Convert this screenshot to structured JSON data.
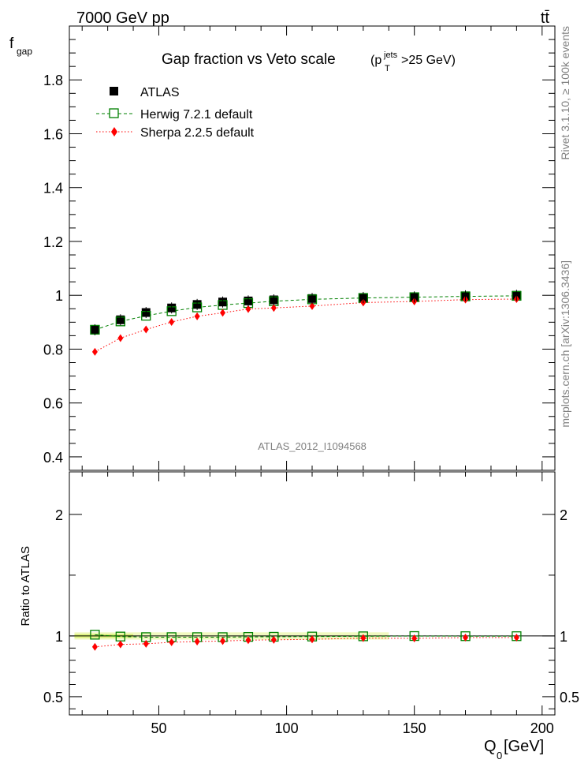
{
  "header": {
    "energy_label": "7000 GeV pp",
    "process_label": "tt̄"
  },
  "side_labels": {
    "rivet": "Rivet 3.1.10, ≥ 100k events",
    "mcplots": "mcplots.cern.ch [arXiv:1306.3436]"
  },
  "chart_data": {
    "type": "scatter",
    "title": "Gap fraction vs Veto scale",
    "title_cut": {
      "prefix": "(p",
      "sub": "T",
      "sup": "jets",
      "suffix": ">25 GeV)"
    },
    "ylabel_main": {
      "base": "f",
      "sub": "gap"
    },
    "ylabel_ratio": "Ratio to ATLAS",
    "xlabel": {
      "base": "Q",
      "sub": "0",
      "unit": " [GeV]"
    },
    "watermark": "ATLAS_2012_I1094568",
    "xlim": [
      15,
      205
    ],
    "ylim_main": [
      0.35,
      2.0
    ],
    "ylim_ratio": [
      0.35,
      2.35
    ],
    "x_ticks": [
      "50",
      "100",
      "150",
      "200"
    ],
    "y_ticks_main": [
      "0.4",
      "0.6",
      "0.8",
      "1",
      "1.2",
      "1.4",
      "1.6",
      "1.8"
    ],
    "y_ticks_ratio": [
      "0.5",
      "1",
      "2"
    ],
    "x": [
      25,
      35,
      45,
      55,
      65,
      75,
      85,
      95,
      110,
      130,
      150,
      170,
      190
    ],
    "series": [
      {
        "name": "ATLAS",
        "color": "#000000",
        "marker": "filled-square",
        "values": [
          0.872,
          0.909,
          0.936,
          0.953,
          0.966,
          0.975,
          0.979,
          0.983,
          0.988,
          0.992,
          0.994,
          0.998,
          1.0
        ],
        "ratio": [
          1,
          1,
          1,
          1,
          1,
          1,
          1,
          1,
          1,
          1,
          1,
          1,
          1
        ]
      },
      {
        "name": "Herwig 7.2.1 default",
        "color": "#008000",
        "marker": "open-square",
        "line": "dashed",
        "values": [
          0.872,
          0.903,
          0.924,
          0.941,
          0.955,
          0.964,
          0.971,
          0.978,
          0.985,
          0.99,
          0.993,
          0.996,
          0.998
        ],
        "ratio": [
          1.01,
          0.995,
          0.99,
          0.99,
          0.99,
          0.99,
          0.992,
          0.993,
          0.995,
          0.997,
          0.999,
          0.998,
          0.998
        ]
      },
      {
        "name": "Sherpa 2.2.5 default",
        "color": "#ff0000",
        "marker": "filled-diamond",
        "line": "dotted",
        "values": [
          0.79,
          0.841,
          0.873,
          0.901,
          0.922,
          0.935,
          0.949,
          0.953,
          0.96,
          0.973,
          0.977,
          0.984,
          0.986
        ],
        "ratio": [
          0.91,
          0.93,
          0.935,
          0.948,
          0.954,
          0.958,
          0.965,
          0.968,
          0.972,
          0.982,
          0.98,
          0.986,
          0.986
        ]
      }
    ],
    "legend_position": "top-left"
  }
}
